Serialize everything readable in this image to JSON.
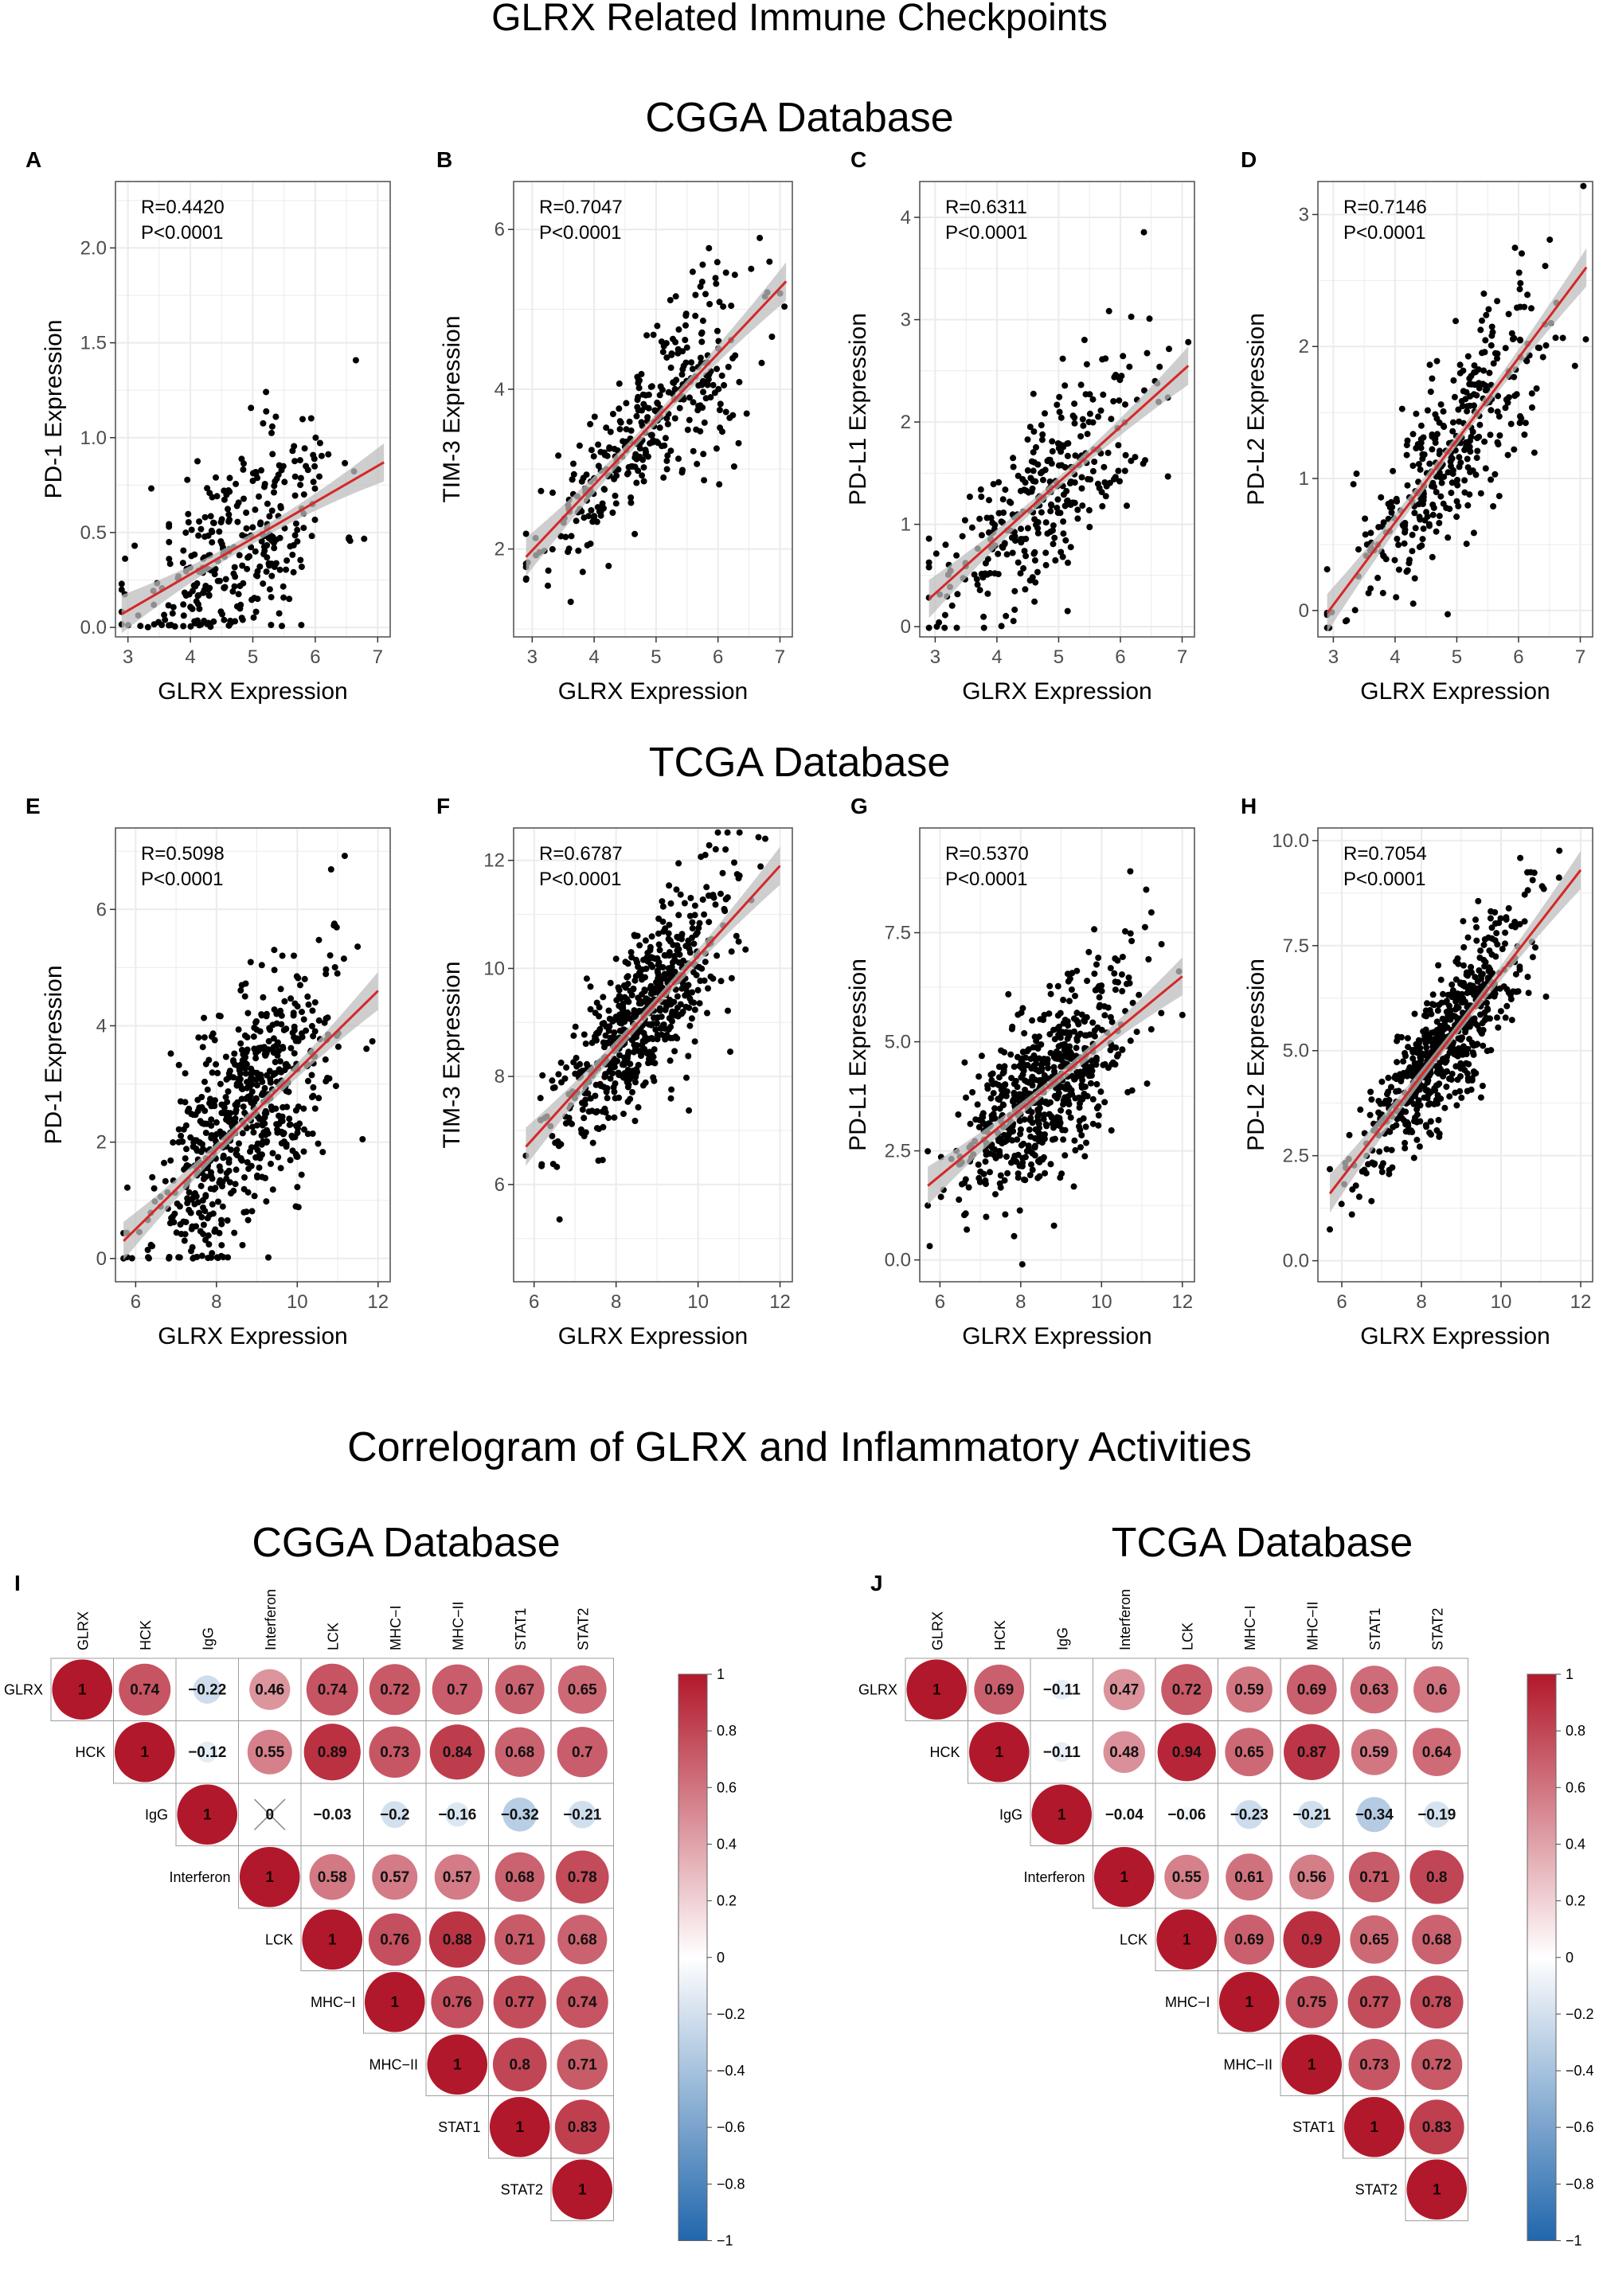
{
  "figure": {
    "title_top": "GLRX Related Immune Checkpoints",
    "section_cgga": "CGGA Database",
    "section_tcga": "TCGA Database",
    "title_bottom": "Correlogram of GLRX and Inflammatory Activities",
    "corr_cgga_title": "CGGA Database",
    "corr_tcga_title": "TCGA Database"
  },
  "colors": {
    "points": "#000000",
    "fit_line": "#d62728",
    "ci_band": "#bdbdbd",
    "grid": "#ebebeb",
    "pos_high": "#b2182b",
    "neg_high": "#2166ac",
    "cell_border": "#9e9e9e"
  },
  "chart_data": [
    {
      "type": "scatter",
      "panel": "A",
      "database": "CGGA",
      "xlabel": "GLRX Expression",
      "ylabel": "PD-1 Expression",
      "r_text": "R=0.4420",
      "p_text": "P<0.0001",
      "xlim": [
        2.8,
        7.2
      ],
      "ylim": [
        -0.05,
        2.35
      ],
      "xticks": [
        3,
        4,
        5,
        6,
        7
      ],
      "yticks": [
        0.0,
        0.5,
        1.0,
        1.5,
        2.0
      ],
      "ytick_labels": [
        "0.0",
        "0.5",
        "1.0",
        "1.5",
        "2.0"
      ],
      "fit": {
        "x0": 2.9,
        "y0": 0.07,
        "x1": 7.1,
        "y1": 0.87
      },
      "n_points": 320,
      "seed": 11,
      "x_mean": 4.8,
      "x_sd": 0.8,
      "resid_sd": 0.3,
      "floor": 0.0
    },
    {
      "type": "scatter",
      "panel": "B",
      "database": "CGGA",
      "xlabel": "GLRX Expression",
      "ylabel": "TIM-3 Expression",
      "r_text": "R=0.7047",
      "p_text": "P<0.0001",
      "xlim": [
        2.7,
        7.2
      ],
      "ylim": [
        0.9,
        6.6
      ],
      "xticks": [
        3,
        4,
        5,
        6,
        7
      ],
      "yticks": [
        2,
        4,
        6
      ],
      "ytick_labels": [
        "2",
        "4",
        "6"
      ],
      "fit": {
        "x0": 2.9,
        "y0": 1.9,
        "x1": 7.1,
        "y1": 5.35
      },
      "n_points": 350,
      "seed": 22,
      "x_mean": 4.9,
      "x_sd": 0.85,
      "resid_sd": 0.6
    },
    {
      "type": "scatter",
      "panel": "C",
      "database": "CGGA",
      "xlabel": "GLRX Expression",
      "ylabel": "PD-L1 Expression",
      "r_text": "R=0.6311",
      "p_text": "P<0.0001",
      "xlim": [
        2.75,
        7.2
      ],
      "ylim": [
        -0.1,
        4.35
      ],
      "xticks": [
        3,
        4,
        5,
        6,
        7
      ],
      "yticks": [
        0,
        1,
        2,
        3,
        4
      ],
      "ytick_labels": [
        "0",
        "1",
        "2",
        "3",
        "4"
      ],
      "fit": {
        "x0": 2.9,
        "y0": 0.27,
        "x1": 7.1,
        "y1": 2.55
      },
      "n_points": 330,
      "seed": 33,
      "x_mean": 4.8,
      "x_sd": 0.85,
      "resid_sd": 0.5
    },
    {
      "type": "scatter",
      "panel": "D",
      "database": "CGGA",
      "xlabel": "GLRX Expression",
      "ylabel": "PD-L2 Expression",
      "r_text": "R=0.7146",
      "p_text": "P<0.0001",
      "xlim": [
        2.75,
        7.2
      ],
      "ylim": [
        -0.2,
        3.25
      ],
      "xticks": [
        3,
        4,
        5,
        6,
        7
      ],
      "yticks": [
        0,
        1,
        2,
        3
      ],
      "ytick_labels": [
        "0",
        "1",
        "2",
        "3"
      ],
      "fit": {
        "x0": 2.9,
        "y0": -0.02,
        "x1": 7.1,
        "y1": 2.6
      },
      "n_points": 360,
      "seed": 44,
      "x_mean": 4.9,
      "x_sd": 0.85,
      "resid_sd": 0.45
    },
    {
      "type": "scatter",
      "panel": "E",
      "database": "TCGA",
      "xlabel": "GLRX Expression",
      "ylabel": "PD-1 Expression",
      "r_text": "R=0.5098",
      "p_text": "P<0.0001",
      "xlim": [
        5.5,
        12.3
      ],
      "ylim": [
        -0.4,
        7.4
      ],
      "xticks": [
        6,
        8,
        10,
        12
      ],
      "yticks": [
        0,
        2,
        4,
        6
      ],
      "ytick_labels": [
        "0",
        "2",
        "4",
        "6"
      ],
      "fit": {
        "x0": 5.7,
        "y0": 0.3,
        "x1": 12.0,
        "y1": 4.6
      },
      "n_points": 650,
      "seed": 55,
      "x_mean": 8.7,
      "x_sd": 1.1,
      "resid_sd": 1.2,
      "floor": 0.0
    },
    {
      "type": "scatter",
      "panel": "F",
      "database": "TCGA",
      "xlabel": "GLRX Expression",
      "ylabel": "TIM-3 Expression",
      "r_text": "R=0.6787",
      "p_text": "P<0.0001",
      "xlim": [
        5.5,
        12.3
      ],
      "ylim": [
        4.2,
        12.6
      ],
      "xticks": [
        6,
        8,
        10,
        12
      ],
      "yticks": [
        6,
        8,
        10,
        12
      ],
      "ytick_labels": [
        "6",
        "8",
        "10",
        "12"
      ],
      "fit": {
        "x0": 5.8,
        "y0": 6.7,
        "x1": 12.0,
        "y1": 11.9
      },
      "n_points": 650,
      "seed": 66,
      "x_mean": 8.6,
      "x_sd": 1.0,
      "resid_sd": 0.9
    },
    {
      "type": "scatter",
      "panel": "G",
      "database": "TCGA",
      "xlabel": "GLRX Expression",
      "ylabel": "PD-L1 Expression",
      "r_text": "R=0.5370",
      "p_text": "P<0.0001",
      "xlim": [
        5.5,
        12.3
      ],
      "ylim": [
        -0.5,
        9.9
      ],
      "xticks": [
        6,
        8,
        10,
        12
      ],
      "yticks": [
        0.0,
        2.5,
        5.0,
        7.5
      ],
      "ytick_labels": [
        "0.0",
        "2.5",
        "5.0",
        "7.5"
      ],
      "fit": {
        "x0": 5.7,
        "y0": 1.7,
        "x1": 12.0,
        "y1": 6.5
      },
      "n_points": 650,
      "seed": 77,
      "x_mean": 8.6,
      "x_sd": 1.1,
      "resid_sd": 1.2
    },
    {
      "type": "scatter",
      "panel": "H",
      "database": "TCGA",
      "xlabel": "GLRX Expression",
      "ylabel": "PD-L2 Expression",
      "r_text": "R=0.7054",
      "p_text": "P<0.0001",
      "xlim": [
        5.4,
        12.3
      ],
      "ylim": [
        -0.5,
        10.3
      ],
      "xticks": [
        6,
        8,
        10,
        12
      ],
      "yticks": [
        0.0,
        2.5,
        5.0,
        7.5,
        10.0
      ],
      "ytick_labels": [
        "0.0",
        "2.5",
        "5.0",
        "7.5",
        "10.0"
      ],
      "fit": {
        "x0": 5.7,
        "y0": 1.6,
        "x1": 12.0,
        "y1": 9.3
      },
      "n_points": 650,
      "seed": 88,
      "x_mean": 8.6,
      "x_sd": 1.0,
      "resid_sd": 1.0
    },
    {
      "type": "heatmap",
      "panel": "I",
      "database": "CGGA",
      "variables": [
        "GLRX",
        "HCK",
        "IgG",
        "Interferon",
        "LCK",
        "MHC−I",
        "MHC−II",
        "STAT1",
        "STAT2"
      ],
      "matrix": [
        [
          1,
          0.74,
          -0.22,
          0.46,
          0.74,
          0.72,
          0.7,
          0.67,
          0.65
        ],
        [
          null,
          1,
          -0.12,
          0.55,
          0.89,
          0.73,
          0.84,
          0.68,
          0.7
        ],
        [
          null,
          null,
          1,
          0,
          -0.03,
          -0.2,
          -0.16,
          -0.32,
          -0.21
        ],
        [
          null,
          null,
          null,
          1,
          0.58,
          0.57,
          0.57,
          0.68,
          0.78
        ],
        [
          null,
          null,
          null,
          null,
          1,
          0.76,
          0.88,
          0.71,
          0.68
        ],
        [
          null,
          null,
          null,
          null,
          null,
          1,
          0.76,
          0.77,
          0.74
        ],
        [
          null,
          null,
          null,
          null,
          null,
          null,
          1,
          0.8,
          0.71
        ],
        [
          null,
          null,
          null,
          null,
          null,
          null,
          null,
          1,
          0.83
        ],
        [
          null,
          null,
          null,
          null,
          null,
          null,
          null,
          null,
          1
        ]
      ],
      "labels": [
        [
          "1",
          "0.74",
          "−0.22",
          "0.46",
          "0.74",
          "0.72",
          "0.7",
          "0.67",
          "0.65"
        ],
        [
          "",
          "1",
          "−0.12",
          "0.55",
          "0.89",
          "0.73",
          "0.84",
          "0.68",
          "0.7"
        ],
        [
          "",
          "",
          "1",
          "0",
          "−0.03",
          "−0.2",
          "−0.16",
          "−0.32",
          "−0.21"
        ],
        [
          "",
          "",
          "",
          "1",
          "0.58",
          "0.57",
          "0.57",
          "0.68",
          "0.78"
        ],
        [
          "",
          "",
          "",
          "",
          "1",
          "0.76",
          "0.88",
          "0.71",
          "0.68"
        ],
        [
          "",
          "",
          "",
          "",
          "",
          "1",
          "0.76",
          "0.77",
          "0.74"
        ],
        [
          "",
          "",
          "",
          "",
          "",
          "",
          "1",
          "0.8",
          "0.71"
        ],
        [
          "",
          "",
          "",
          "",
          "",
          "",
          "",
          "1",
          "0.83"
        ],
        [
          "",
          "",
          "",
          "",
          "",
          "",
          "",
          "",
          "1"
        ]
      ],
      "insignificant": [
        [
          2,
          3
        ]
      ],
      "colorbar": {
        "min": -1,
        "max": 1,
        "ticks": [
          "1",
          "0.8",
          "0.6",
          "0.4",
          "0.2",
          "0",
          "−0.2",
          "−0.4",
          "−0.6",
          "−0.8",
          "−1"
        ]
      }
    },
    {
      "type": "heatmap",
      "panel": "J",
      "database": "TCGA",
      "variables": [
        "GLRX",
        "HCK",
        "IgG",
        "Interferon",
        "LCK",
        "MHC−I",
        "MHC−II",
        "STAT1",
        "STAT2"
      ],
      "matrix": [
        [
          1,
          0.69,
          -0.11,
          0.47,
          0.72,
          0.59,
          0.69,
          0.63,
          0.6
        ],
        [
          null,
          1,
          -0.11,
          0.48,
          0.94,
          0.65,
          0.87,
          0.59,
          0.64
        ],
        [
          null,
          null,
          1,
          -0.04,
          -0.06,
          -0.23,
          -0.21,
          -0.34,
          -0.19
        ],
        [
          null,
          null,
          null,
          1,
          0.55,
          0.61,
          0.56,
          0.71,
          0.8
        ],
        [
          null,
          null,
          null,
          null,
          1,
          0.69,
          0.9,
          0.65,
          0.68
        ],
        [
          null,
          null,
          null,
          null,
          null,
          1,
          0.75,
          0.77,
          0.78
        ],
        [
          null,
          null,
          null,
          null,
          null,
          null,
          1,
          0.73,
          0.72
        ],
        [
          null,
          null,
          null,
          null,
          null,
          null,
          null,
          1,
          0.83
        ],
        [
          null,
          null,
          null,
          null,
          null,
          null,
          null,
          null,
          1
        ]
      ],
      "labels": [
        [
          "1",
          "0.69",
          "−0.11",
          "0.47",
          "0.72",
          "0.59",
          "0.69",
          "0.63",
          "0.6"
        ],
        [
          "",
          "1",
          "−0.11",
          "0.48",
          "0.94",
          "0.65",
          "0.87",
          "0.59",
          "0.64"
        ],
        [
          "",
          "",
          "1",
          "−0.04",
          "−0.06",
          "−0.23",
          "−0.21",
          "−0.34",
          "−0.19"
        ],
        [
          "",
          "",
          "",
          "1",
          "0.55",
          "0.61",
          "0.56",
          "0.71",
          "0.8"
        ],
        [
          "",
          "",
          "",
          "",
          "1",
          "0.69",
          "0.9",
          "0.65",
          "0.68"
        ],
        [
          "",
          "",
          "",
          "",
          "",
          "1",
          "0.75",
          "0.77",
          "0.78"
        ],
        [
          "",
          "",
          "",
          "",
          "",
          "",
          "1",
          "0.73",
          "0.72"
        ],
        [
          "",
          "",
          "",
          "",
          "",
          "",
          "",
          "1",
          "0.83"
        ],
        [
          "",
          "",
          "",
          "",
          "",
          "",
          "",
          "",
          "1"
        ]
      ],
      "insignificant": [],
      "colorbar": {
        "min": -1,
        "max": 1,
        "ticks": [
          "1",
          "0.8",
          "0.6",
          "0.4",
          "0.2",
          "0",
          "−0.2",
          "−0.4",
          "−0.6",
          "−0.8",
          "−1"
        ]
      }
    }
  ]
}
